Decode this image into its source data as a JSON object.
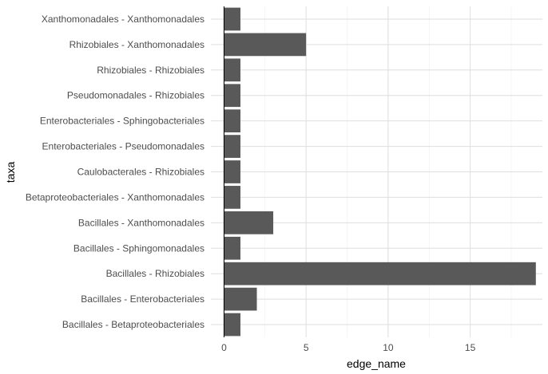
{
  "chart_data": {
    "type": "bar",
    "orientation": "horizontal",
    "xlabel": "edge_name",
    "ylabel": "taxa",
    "xlim": [
      -0.8,
      19.4
    ],
    "x_ticks": [
      0,
      5,
      10,
      15
    ],
    "grid": true,
    "legend": "none",
    "categories": [
      "Xanthomonadales - Xanthomonadales",
      "Rhizobiales - Xanthomonadales",
      "Rhizobiales - Rhizobiales",
      "Pseudomonadales - Rhizobiales",
      "Enterobacteriales - Sphingobacteriales",
      "Enterobacteriales - Pseudomonadales",
      "Caulobacterales - Rhizobiales",
      "Betaproteobacteriales - Xanthomonadales",
      "Bacillales - Xanthomonadales",
      "Bacillales - Sphingomonadales",
      "Bacillales - Rhizobiales",
      "Bacillales - Enterobacteriales",
      "Bacillales - Betaproteobacteriales"
    ],
    "values": [
      1,
      5,
      1,
      1,
      1,
      1,
      1,
      1,
      3,
      1,
      19,
      2,
      1
    ]
  },
  "colors": {
    "bar": "#595959",
    "grid_major": "#dedede",
    "grid_minor": "#efefef",
    "zero_line": "#000000",
    "tick_text": "#4d4d4d"
  }
}
